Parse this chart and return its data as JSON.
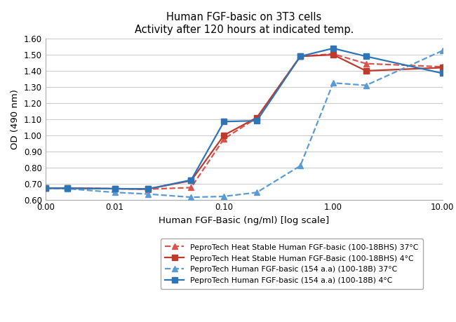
{
  "title_line1": "Human FGF-basic on 3T3 cells",
  "title_line2": "Activity after 120 hours at indicated temp.",
  "xlabel": "Human FGF-Basic (ng/ml) [log scale]",
  "ylabel": "OD (490 nm)",
  "ylim": [
    0.6,
    1.6
  ],
  "yticks": [
    0.6,
    0.7,
    0.8,
    0.9,
    1.0,
    1.1,
    1.2,
    1.3,
    1.4,
    1.5,
    1.6
  ],
  "x_data": [
    0.0,
    0.003,
    0.01,
    0.02,
    0.05,
    0.1,
    0.2,
    0.5,
    1.0,
    2.0,
    10.0
  ],
  "x_ticks_pos": [
    0.0,
    0.01,
    0.1,
    1.0,
    10.0
  ],
  "x_tick_labels": [
    "0.00",
    "0.01",
    "0.10",
    "1.00",
    "10.00"
  ],
  "series": [
    {
      "label": "PeproTech Heat Stable Human FGF-basic (100-18BHS) 37°C",
      "color": "#d9534f",
      "linestyle": "dashed",
      "marker": "^",
      "markersize": 6,
      "linewidth": 1.6,
      "y_data": [
        0.671,
        0.671,
        0.668,
        0.665,
        0.675,
        0.978,
        1.108,
        1.49,
        1.505,
        1.445,
        1.425
      ]
    },
    {
      "label": "PeproTech Heat Stable Human FGF-Basic (100-18BHS) 4°C",
      "color": "#c0392b",
      "linestyle": "solid",
      "marker": "s",
      "markersize": 6,
      "linewidth": 1.6,
      "y_data": [
        0.671,
        0.671,
        0.668,
        0.666,
        0.718,
        1.0,
        1.11,
        1.49,
        1.5,
        1.4,
        1.42
      ]
    },
    {
      "label": "PeproTech Human FGF-basic (154 a.a) (100-18B) 37°C",
      "color": "#5b9bd5",
      "linestyle": "dashed",
      "marker": "^",
      "markersize": 6,
      "linewidth": 1.6,
      "y_data": [
        0.671,
        0.668,
        0.645,
        0.635,
        0.615,
        0.62,
        0.645,
        0.81,
        1.325,
        1.31,
        1.525
      ]
    },
    {
      "label": "PeproTech Human FGF-basic (154 a.a) (100-18B) 4°C",
      "color": "#2e75b6",
      "linestyle": "solid",
      "marker": "s",
      "markersize": 6,
      "linewidth": 1.6,
      "y_data": [
        0.671,
        0.671,
        0.668,
        0.666,
        0.722,
        1.085,
        1.09,
        1.49,
        1.54,
        1.49,
        1.385
      ]
    }
  ],
  "legend_loc": "lower center",
  "background_color": "#ffffff",
  "grid_color": "#cccccc",
  "title_fontsize": 10.5,
  "axis_label_fontsize": 9.5,
  "tick_fontsize": 8.5,
  "legend_fontsize": 7.8
}
